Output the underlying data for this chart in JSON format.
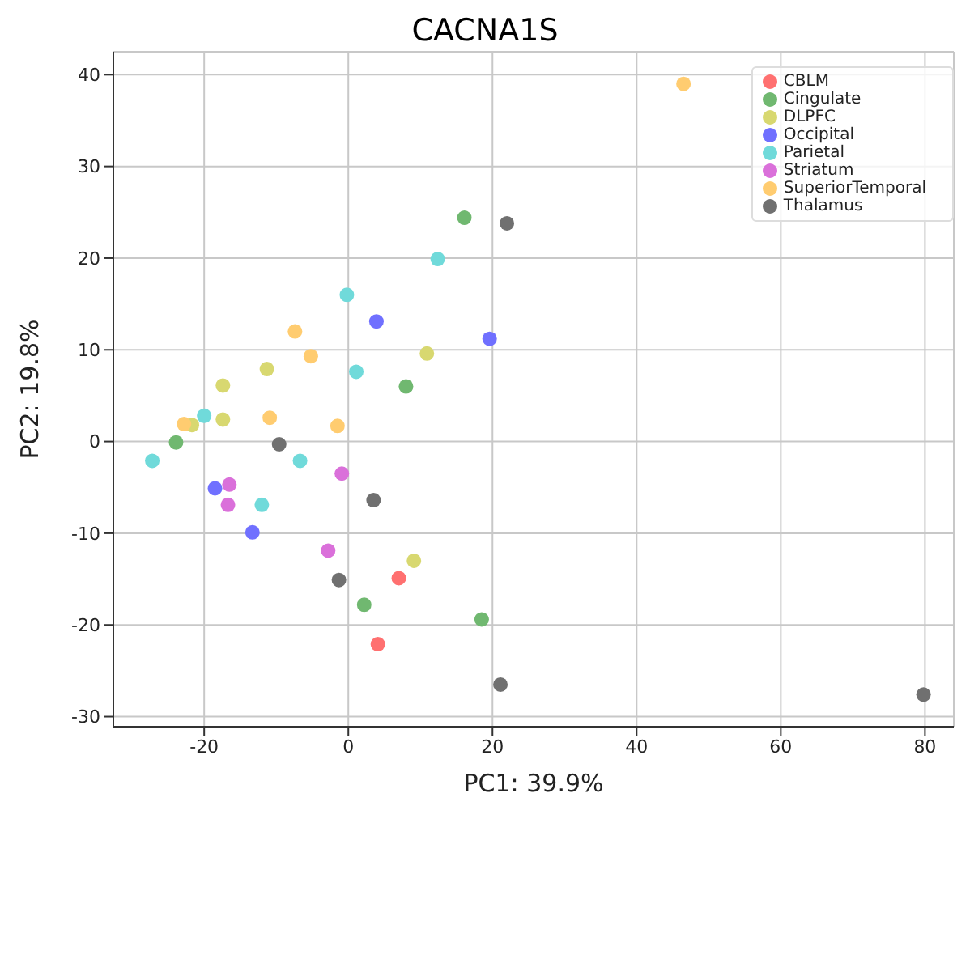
{
  "chart_data": {
    "type": "scatter",
    "title": "CACNA1S",
    "xlabel": "PC1: 39.9%",
    "ylabel": "PC2: 19.8%",
    "xlim": [
      -32.6,
      84
    ],
    "ylim": [
      -31.1,
      42.5
    ],
    "xticks": [
      -20,
      0,
      20,
      40,
      60,
      80
    ],
    "yticks": [
      -30,
      -20,
      -10,
      0,
      10,
      20,
      30,
      40
    ],
    "grid": true,
    "legend": "top right",
    "marker": "circle",
    "series": [
      {
        "name": "CBLM",
        "color": "#ff7070",
        "x": [
          7.0,
          4.1
        ],
        "values": [
          -14.9,
          -22.1
        ]
      },
      {
        "name": "Cingulate",
        "color": "#70b870",
        "x": [
          16.1,
          8.0,
          -23.9,
          2.2,
          18.5
        ],
        "values": [
          24.4,
          6.0,
          -0.1,
          -17.8,
          -19.4
        ]
      },
      {
        "name": "DLPFC",
        "color": "#d8d870",
        "x": [
          -11.3,
          -17.4,
          10.9,
          -17.4,
          -21.7,
          9.1
        ],
        "values": [
          7.9,
          6.1,
          9.6,
          2.4,
          1.8,
          -13.0
        ]
      },
      {
        "name": "Occipital",
        "color": "#7070ff",
        "x": [
          3.9,
          19.6,
          -18.5,
          -13.3
        ],
        "values": [
          13.1,
          11.2,
          -5.1,
          -9.9
        ]
      },
      {
        "name": "Parietal",
        "color": "#70dada",
        "x": [
          -0.2,
          12.4,
          1.1,
          -20.0,
          -27.2,
          -6.7,
          -12.0
        ],
        "values": [
          16.0,
          19.9,
          7.6,
          2.8,
          -2.1,
          -2.1,
          -6.9
        ]
      },
      {
        "name": "Striatum",
        "color": "#da70da",
        "x": [
          -16.5,
          -0.9,
          -16.7,
          -2.8
        ],
        "values": [
          -4.7,
          -3.5,
          -6.9,
          -11.9
        ]
      },
      {
        "name": "SuperiorTemporal",
        "color": "#ffcc70",
        "x": [
          -7.4,
          -5.2,
          -22.8,
          -10.9,
          -1.5,
          46.5
        ],
        "values": [
          12.0,
          9.3,
          1.9,
          2.6,
          1.7,
          39.0
        ]
      },
      {
        "name": "Thalamus",
        "color": "#707070",
        "x": [
          22.0,
          -9.6,
          3.5,
          -1.3,
          21.1,
          79.8
        ],
        "values": [
          23.8,
          -0.3,
          -6.4,
          -15.1,
          -26.5,
          -27.6
        ]
      }
    ]
  }
}
